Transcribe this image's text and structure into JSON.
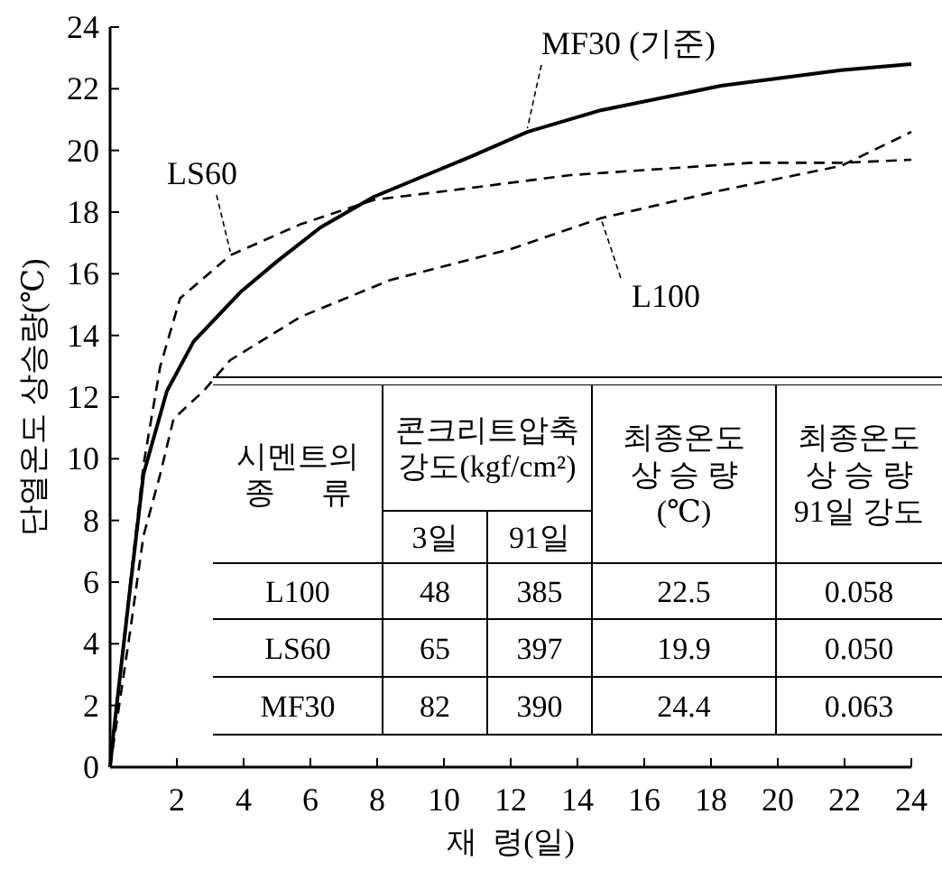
{
  "chart_data": {
    "type": "line",
    "xlabel": "재  령(일)",
    "ylabel": "단열온도 상승량(℃)",
    "xlim": [
      0,
      24
    ],
    "ylim": [
      0,
      24
    ],
    "xticks": [
      2,
      4,
      6,
      8,
      10,
      12,
      14,
      16,
      18,
      20,
      22,
      24
    ],
    "yticks": [
      0,
      2,
      4,
      6,
      8,
      10,
      12,
      14,
      16,
      18,
      20,
      22,
      24
    ],
    "grid": false,
    "marker": "none",
    "series": [
      {
        "name": "MF30 (기준)",
        "color": "#000000",
        "line_style": "solid",
        "x": [
          0,
          0.1,
          0.6,
          1.0,
          1.7,
          2.5,
          3.9,
          5.0,
          6.3,
          7.9,
          10.8,
          12.5,
          14.7,
          18.3,
          21.9,
          24
        ],
        "values": [
          0,
          1.1,
          5.8,
          9.5,
          12.2,
          13.8,
          15.4,
          16.4,
          17.5,
          18.5,
          19.8,
          20.6,
          21.3,
          22.1,
          22.6,
          22.8
        ]
      },
      {
        "name": "LS60",
        "color": "#000000",
        "line_style": "dashed",
        "x": [
          0,
          0.5,
          1.0,
          1.5,
          2.1,
          3.6,
          5.7,
          7.9,
          10.2,
          13.8,
          16.5,
          19.2,
          21.9,
          24
        ],
        "values": [
          0,
          5.0,
          9.8,
          13.0,
          15.2,
          16.6,
          17.6,
          18.4,
          18.7,
          19.2,
          19.4,
          19.6,
          19.6,
          19.7
        ]
      },
      {
        "name": "L100",
        "color": "#000000",
        "line_style": "dashed",
        "x": [
          0,
          0.6,
          1.0,
          1.5,
          1.9,
          2.8,
          3.6,
          5.7,
          8.4,
          12.0,
          14.7,
          18.3,
          21.9,
          24
        ],
        "values": [
          0,
          4.4,
          7.5,
          9.5,
          11.3,
          12.2,
          13.2,
          14.6,
          15.8,
          16.8,
          17.8,
          18.7,
          19.5,
          20.6
        ]
      }
    ],
    "annotations": [
      "시멘트의\n종      류",
      "콘크리트압축\n강도(kgf/cm²)",
      "최종온도\n상 승 량\n(℃)",
      "최종온도\n상 승 량\n91일 강도",
      "3일",
      "91일",
      "L100",
      "48",
      "385",
      "22.5",
      "0.058",
      "LS60",
      "65",
      "397",
      "19.9",
      "0.050",
      "MF30",
      "82",
      "390",
      "24.4",
      "0.063"
    ]
  }
}
